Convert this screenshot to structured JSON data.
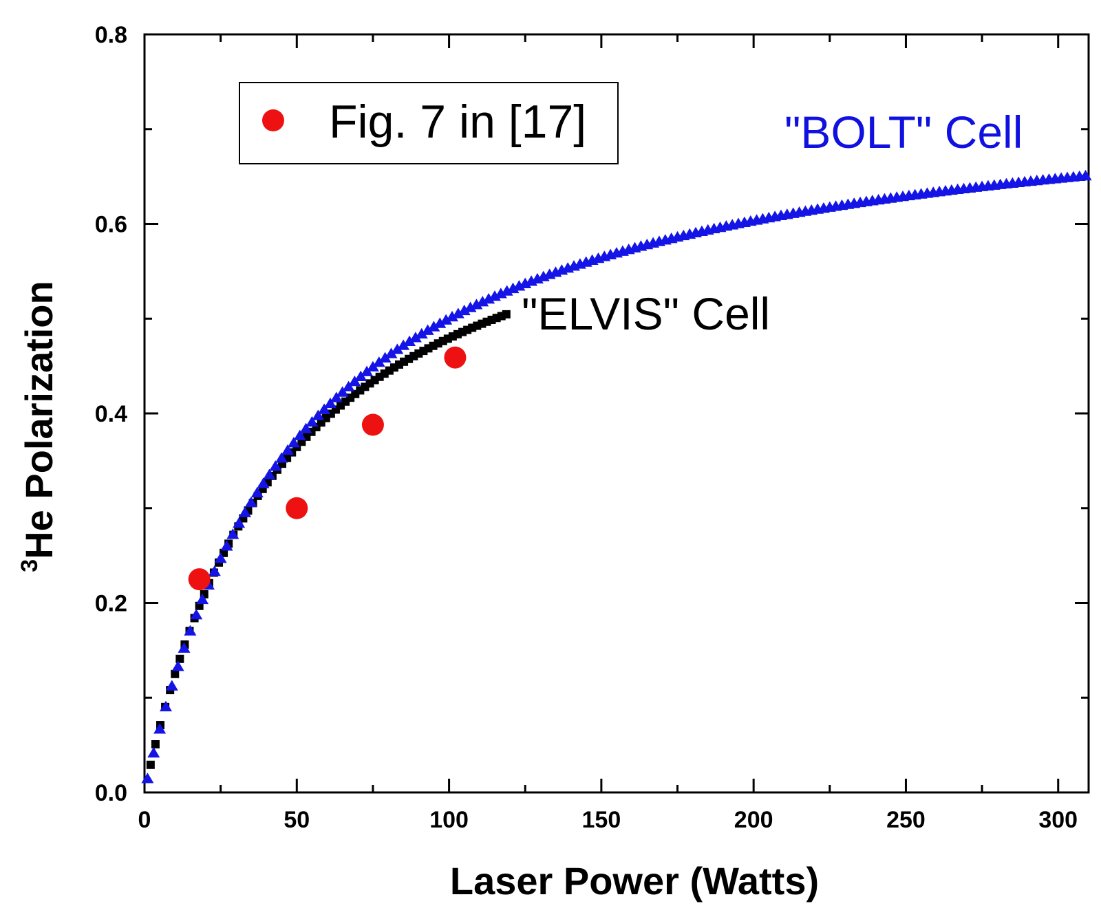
{
  "chart_data": {
    "type": "scatter",
    "title": "",
    "xlabel": "Laser Power (Watts)",
    "ylabel_superscript": "3",
    "ylabel": "He Polarization",
    "xlim": [
      0,
      310
    ],
    "ylim": [
      0,
      0.8
    ],
    "x_ticks": [
      0,
      50,
      100,
      150,
      200,
      250,
      300
    ],
    "x_tick_labels": [
      "0",
      "50",
      "100",
      "150",
      "200",
      "250",
      "300"
    ],
    "y_ticks": [
      0.0,
      0.2,
      0.4,
      0.6,
      0.8
    ],
    "y_tick_labels": [
      "0.0",
      "0.2",
      "0.4",
      "0.6",
      "0.8"
    ],
    "y_minor_ticks": [
      0.1,
      0.3,
      0.5,
      0.7
    ],
    "x_minor_ticks": [
      25,
      75,
      125,
      175,
      225,
      275
    ],
    "grid": false,
    "legend": {
      "position": "top-left",
      "entries": [
        {
          "label": "Fig. 7 in [17]",
          "series": "Fig. 7 in [17]"
        }
      ]
    },
    "annotations": [
      {
        "text": "\"BOLT\" Cell",
        "series": "BOLT",
        "color": "#1010e0"
      },
      {
        "text": "\"ELVIS\" Cell",
        "series": "ELVIS",
        "color": "#000000"
      }
    ],
    "series": [
      {
        "name": "BOLT",
        "marker": "triangle",
        "color": "#1414e6",
        "model": "saturation",
        "pmax": 0.76,
        "half_power": 52,
        "x_range": [
          1,
          310
        ],
        "step": 2
      },
      {
        "name": "ELVIS",
        "marker": "square",
        "color": "#000000",
        "model": "saturation",
        "pmax": 0.7,
        "half_power": 46,
        "x_range": [
          2,
          120
        ],
        "step": 1.6
      },
      {
        "name": "Fig. 7 in [17]",
        "marker": "circle",
        "color": "#ee1111",
        "x": [
          18,
          50,
          75,
          102
        ],
        "y": [
          0.225,
          0.3,
          0.388,
          0.459
        ]
      }
    ]
  }
}
